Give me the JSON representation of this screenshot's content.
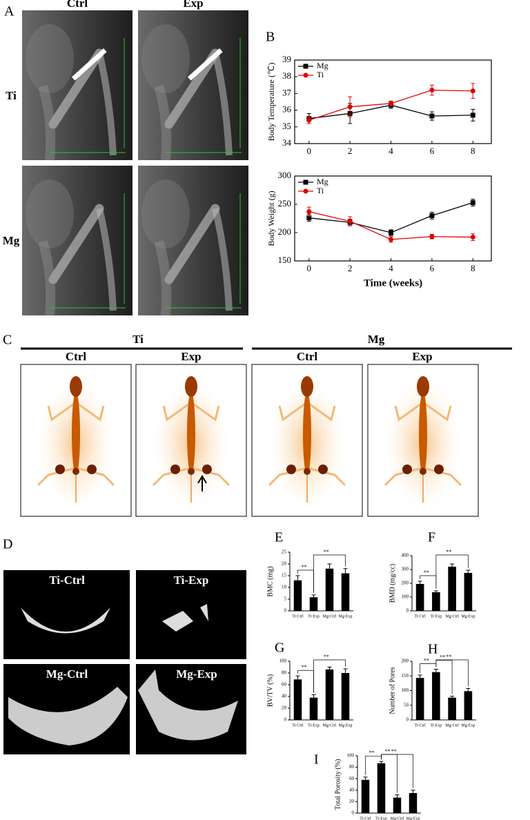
{
  "panel_a": {
    "label": "A",
    "columns": [
      "Ctrl",
      "Exp"
    ],
    "rows": [
      "Ti",
      "Mg"
    ]
  },
  "panel_b_label": "B",
  "panel_c": {
    "label": "C",
    "groups": [
      "Ti",
      "Mg"
    ],
    "columns": [
      "Ctrl",
      "Exp",
      "Ctrl",
      "Exp"
    ]
  },
  "panel_d": {
    "label": "D",
    "images": [
      "Ti-Ctrl",
      "Ti-Exp",
      "Mg-Ctrl",
      "Mg-Exp"
    ]
  },
  "chart_data": [
    {
      "type": "line",
      "ylabel": "Body Temperature (℃)",
      "x": [
        0,
        2,
        4,
        6,
        8
      ],
      "xlim": [
        -0.7,
        8.9
      ],
      "xticks": [
        0,
        2,
        4,
        6,
        8
      ],
      "ylim": [
        34,
        39
      ],
      "yticks": [
        34,
        35,
        36,
        37,
        38,
        39
      ],
      "legend": "upper left",
      "series": [
        {
          "name": "Mg",
          "color": "#000000",
          "marker": "square",
          "values": [
            35.5,
            35.8,
            36.3,
            35.65,
            35.7
          ],
          "errors": [
            0.3,
            0.6,
            0.2,
            0.25,
            0.35
          ]
        },
        {
          "name": "Ti",
          "color": "#e00000",
          "marker": "circle",
          "values": [
            35.4,
            36.2,
            36.4,
            37.2,
            37.15
          ],
          "errors": [
            0.2,
            0.6,
            0.15,
            0.3,
            0.45
          ]
        }
      ]
    },
    {
      "type": "line",
      "ylabel": "Body Weight (g)",
      "xlabel": "Time (weeks)",
      "x": [
        0,
        2,
        4,
        6,
        8
      ],
      "xlim": [
        -0.7,
        8.9
      ],
      "xticks": [
        0,
        2,
        4,
        6,
        8
      ],
      "ylim": [
        150,
        300
      ],
      "yticks": [
        150,
        200,
        250,
        300
      ],
      "legend": "upper left",
      "series": [
        {
          "name": "Mg",
          "color": "#000000",
          "marker": "square",
          "values": [
            226,
            218,
            200,
            230,
            253
          ],
          "errors": [
            6,
            6,
            5,
            6,
            6
          ]
        },
        {
          "name": "Ti",
          "color": "#e00000",
          "marker": "circle",
          "values": [
            237,
            220,
            188,
            193,
            192
          ],
          "errors": [
            8,
            8,
            5,
            4,
            6
          ]
        }
      ]
    },
    {
      "type": "bar",
      "label": "E",
      "ylabel": "BMC (mg)",
      "categories": [
        "Ti-Ctrl",
        "Ti-Exp",
        "Mg-Ctrl",
        "Mg-Exp"
      ],
      "values": [
        13,
        5.8,
        18,
        16
      ],
      "errors": [
        2,
        1,
        2,
        2
      ],
      "color": "#000000",
      "ylim": [
        0,
        25
      ],
      "yticks": [
        0,
        5,
        10,
        15,
        20,
        25
      ],
      "annotations": [
        "**",
        "**"
      ]
    },
    {
      "type": "bar",
      "label": "F",
      "ylabel": "BMD (mg/cc)",
      "categories": [
        "Ti-Ctrl",
        "Ti-Exp",
        "Mg-Ctrl",
        "Mg-Exp"
      ],
      "values": [
        195,
        135,
        320,
        275
      ],
      "errors": [
        20,
        10,
        20,
        20
      ],
      "color": "#000000",
      "ylim": [
        0,
        400
      ],
      "yticks": [
        0,
        100,
        200,
        300,
        400
      ],
      "annotations": [
        "**",
        "**"
      ]
    },
    {
      "type": "bar",
      "label": "G",
      "ylabel": "BV/TV (%)",
      "categories": [
        "Ti-Ctrl",
        "Ti-Exp",
        "Mg-Ctrl",
        "Mg-Exp"
      ],
      "values": [
        69,
        38,
        86,
        80
      ],
      "errors": [
        6,
        5,
        4,
        7
      ],
      "color": "#000000",
      "ylim": [
        0,
        100
      ],
      "yticks": [
        0,
        20,
        40,
        60,
        80,
        100
      ],
      "annotations": [
        "**",
        "**"
      ]
    },
    {
      "type": "bar",
      "label": "H",
      "ylabel": "Number of Pores",
      "categories": [
        "Ti-Ctrl",
        "Ti-Exp",
        "Mg-Ctrl",
        "Mg-Exp"
      ],
      "values": [
        143,
        163,
        76,
        98
      ],
      "errors": [
        10,
        10,
        5,
        9
      ],
      "color": "#000000",
      "ylim": [
        0,
        200
      ],
      "yticks": [
        0,
        50,
        100,
        150,
        200
      ],
      "annotations": [
        "**",
        "**",
        "**"
      ]
    },
    {
      "type": "bar",
      "label": "I",
      "ylabel": "Total Porosity (%)",
      "categories": [
        "Ti-Ctrl",
        "Ti-Exp",
        "Mg-Ctrl",
        "Mg-Exp"
      ],
      "values": [
        58,
        87,
        27,
        35
      ],
      "errors": [
        5,
        3,
        5,
        5
      ],
      "color": "#000000",
      "ylim": [
        0,
        100
      ],
      "yticks": [
        0,
        20,
        40,
        60,
        80,
        100
      ],
      "annotations": [
        "**",
        "**",
        "**"
      ]
    }
  ]
}
